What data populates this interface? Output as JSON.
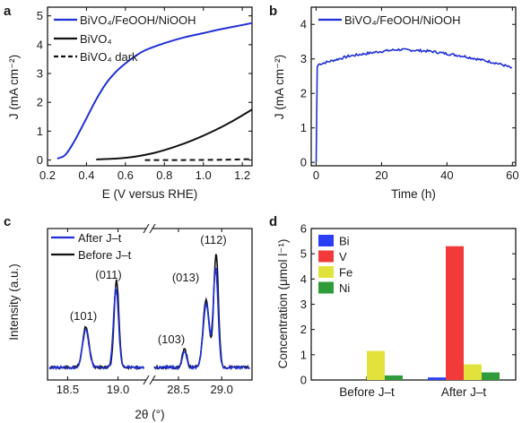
{
  "chart_data": [
    {
      "panel": "a",
      "type": "line",
      "xlabel": "E (V versus RHE)",
      "ylabel": "J (mA cm⁻²)",
      "xlim": [
        0.2,
        1.25
      ],
      "ylim": [
        -0.2,
        5.3
      ],
      "xticks": [
        "0.2",
        "0.4",
        "0.6",
        "0.8",
        "1.0",
        "1.2"
      ],
      "yticks": [
        "0",
        "1",
        "2",
        "3",
        "4",
        "5"
      ],
      "legend_position": "top-left",
      "series": [
        {
          "name": "BiVO₄/FeOOH/NiOOH",
          "color": "#1f2fd6",
          "style": "solid",
          "x": [
            0.25,
            0.28,
            0.3,
            0.32,
            0.35,
            0.4,
            0.45,
            0.5,
            0.55,
            0.6,
            0.65,
            0.7,
            0.8,
            0.9,
            1.0,
            1.1,
            1.2,
            1.25
          ],
          "y": [
            0.05,
            0.12,
            0.25,
            0.45,
            0.8,
            1.45,
            2.1,
            2.65,
            3.05,
            3.35,
            3.6,
            3.8,
            4.05,
            4.25,
            4.4,
            4.55,
            4.68,
            4.75
          ]
        },
        {
          "name": "BiVO₄",
          "color": "#111111",
          "style": "solid",
          "x": [
            0.45,
            0.55,
            0.65,
            0.75,
            0.85,
            0.95,
            1.05,
            1.15,
            1.25
          ],
          "y": [
            0.02,
            0.05,
            0.12,
            0.25,
            0.45,
            0.7,
            1.0,
            1.35,
            1.75
          ]
        },
        {
          "name": "BiVO₄ dark",
          "color": "#111111",
          "style": "dashed",
          "x": [
            0.7,
            0.9,
            1.1,
            1.25
          ],
          "y": [
            0.0,
            0.0,
            0.01,
            0.03
          ]
        }
      ]
    },
    {
      "panel": "b",
      "type": "line",
      "xlabel": "Time (h)",
      "ylabel": "J (mA cm⁻²)",
      "xlim": [
        -1.5,
        61
      ],
      "ylim": [
        -0.1,
        4.5
      ],
      "xticks": [
        "0",
        "20",
        "40",
        "60"
      ],
      "yticks": [
        "0",
        "1",
        "2",
        "3",
        "4"
      ],
      "legend_position": "top",
      "series": [
        {
          "name": "BiVO₄/FeOOH/NiOOH",
          "color": "#1f2fd6",
          "style": "solid",
          "x": [
            0,
            0.2,
            0.4,
            1,
            5,
            10,
            15,
            20,
            25,
            30,
            35,
            40,
            45,
            50,
            55,
            58,
            60
          ],
          "y": [
            0.0,
            2.6,
            2.82,
            2.85,
            2.95,
            3.08,
            3.15,
            3.22,
            3.27,
            3.25,
            3.22,
            3.15,
            3.08,
            2.98,
            2.88,
            2.8,
            2.72
          ]
        }
      ]
    },
    {
      "panel": "c",
      "type": "line",
      "xlabel": "2θ (°)",
      "ylabel": "Intensity (a.u.)",
      "xticks_left": [
        "18.5",
        "19.0"
      ],
      "xticks_right": [
        "28.5",
        "29.0"
      ],
      "xlim_left": [
        18.3,
        19.28
      ],
      "xlim_right": [
        28.2,
        29.35
      ],
      "broken_axis": true,
      "peak_labels": [
        "(101)",
        "(011)",
        "(103)",
        "(013)",
        "(112)"
      ],
      "legend_position": "top-left",
      "series": [
        {
          "name": "After J–t",
          "color": "#1f2fd6",
          "style": "solid"
        },
        {
          "name": "Before J–t",
          "color": "#111111",
          "style": "solid"
        }
      ]
    },
    {
      "panel": "d",
      "type": "bar",
      "ylabel": "Concentration (μmol l⁻¹)",
      "ylim": [
        0,
        6
      ],
      "yticks": [
        "0",
        "1",
        "2",
        "3",
        "4",
        "5",
        "6"
      ],
      "categories": [
        "Before J–t",
        "After J–t"
      ],
      "legend_position": "top-left",
      "series": [
        {
          "name": "Bi",
          "color": "#2a3ff5",
          "values": [
            0.0,
            0.1
          ]
        },
        {
          "name": "V",
          "color": "#f23a3a",
          "values": [
            0.0,
            5.3
          ]
        },
        {
          "name": "Fe",
          "color": "#e2e23c",
          "values": [
            1.15,
            0.62
          ]
        },
        {
          "name": "Ni",
          "color": "#2e9c3a",
          "values": [
            0.18,
            0.3
          ]
        }
      ]
    }
  ],
  "panels": {
    "a": {
      "label": "a"
    },
    "b": {
      "label": "b"
    },
    "c": {
      "label": "c"
    },
    "d": {
      "label": "d"
    }
  }
}
